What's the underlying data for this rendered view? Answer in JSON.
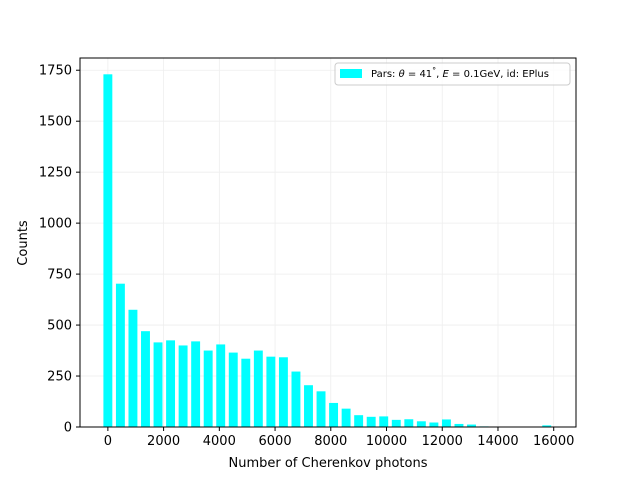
{
  "chart_data": {
    "type": "bar",
    "xlabel": "Number of Cherenkov photons",
    "ylabel": "Counts",
    "xlim": [
      -1000,
      16800
    ],
    "ylim": [
      0,
      1810
    ],
    "grid": true,
    "legend_placement": "top-right",
    "xticks": [
      0,
      2000,
      4000,
      6000,
      8000,
      10000,
      12000,
      14000,
      16000
    ],
    "yticks": [
      0,
      250,
      500,
      750,
      1000,
      1250,
      1500,
      1750
    ],
    "bar_color": "#00ffff",
    "bar_width": 320,
    "series": [
      {
        "name": "Pars: θ = 41°, E = 0.1GeV, id: EPlus",
        "x": [
          0,
          450,
          900,
          1350,
          1800,
          2250,
          2700,
          3150,
          3600,
          4050,
          4500,
          4950,
          5400,
          5850,
          6300,
          6750,
          7200,
          7650,
          8100,
          8550,
          9000,
          9450,
          9900,
          10350,
          10800,
          11250,
          11700,
          12150,
          12600,
          13050,
          13500,
          15750
        ],
        "values": [
          1730,
          703,
          575,
          470,
          415,
          425,
          400,
          420,
          375,
          405,
          365,
          335,
          375,
          345,
          342,
          272,
          205,
          175,
          118,
          90,
          58,
          50,
          52,
          35,
          38,
          28,
          22,
          37,
          15,
          12,
          3,
          8
        ]
      }
    ],
    "legend": {
      "prefix": "Pars: ",
      "theta_symbol": "θ",
      "theta_value": " = 41",
      "degree": "°",
      "sep1": ", ",
      "energy_symbol": "E",
      "energy_value": " = 0.1GeV, id: EPlus"
    }
  }
}
